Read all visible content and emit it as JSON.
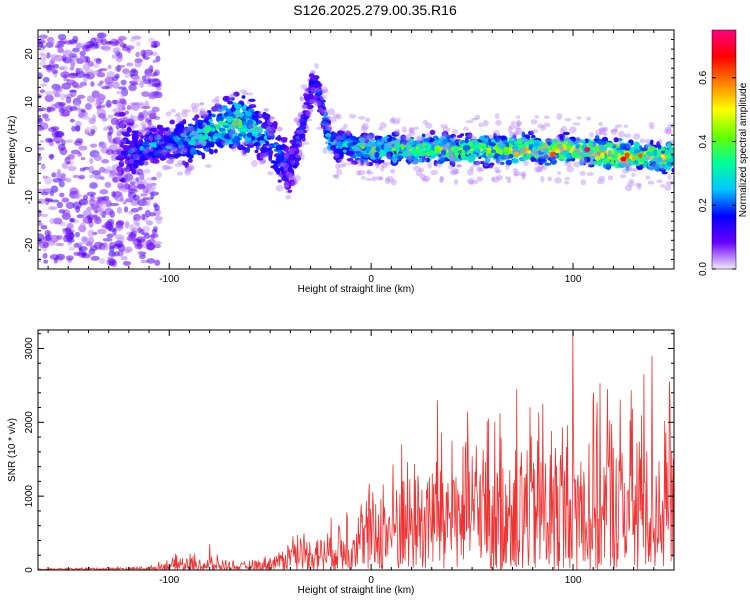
{
  "title": "S126.2025.279.00.35.R16",
  "chart_data": [
    {
      "type": "heatmap",
      "name": "spectrogram",
      "xlabel": "Height of straight line (km)",
      "ylabel": "Frequency (Hz)",
      "xlim": [
        -165,
        150
      ],
      "ylim": [
        -25,
        25
      ],
      "xticks": [
        -100,
        0,
        100
      ],
      "yticks": [
        -20,
        -10,
        0,
        10,
        20
      ],
      "colorbar": {
        "label": "Normalized spectral amplitude",
        "range": [
          0.0,
          0.75
        ],
        "ticks": [
          0.0,
          0.2,
          0.4,
          0.6
        ],
        "colors": [
          "#f3e8fb",
          "#6a00ff",
          "#0000ff",
          "#00c8ff",
          "#00ff99",
          "#66ff00",
          "#ffff00",
          "#ff8000",
          "#ff0000",
          "#ff0080"
        ]
      },
      "ridge_profile": [
        {
          "x": -165,
          "center": 0,
          "spread": 22,
          "amp": 0.05
        },
        {
          "x": -130,
          "center": 0,
          "spread": 20,
          "amp": 0.05
        },
        {
          "x": -115,
          "center": 0,
          "spread": 4,
          "amp": 0.2
        },
        {
          "x": -90,
          "center": 2,
          "spread": 5,
          "amp": 0.25
        },
        {
          "x": -65,
          "center": 6,
          "spread": 6,
          "amp": 0.35
        },
        {
          "x": -50,
          "center": 2,
          "spread": 6,
          "amp": 0.22
        },
        {
          "x": -40,
          "center": -5,
          "spread": 6,
          "amp": 0.15
        },
        {
          "x": -28,
          "center": 15,
          "spread": 3,
          "amp": 0.15
        },
        {
          "x": -20,
          "center": 1,
          "spread": 3,
          "amp": 0.25
        },
        {
          "x": 0,
          "center": 0,
          "spread": 3,
          "amp": 0.35
        },
        {
          "x": 50,
          "center": 0,
          "spread": 3,
          "amp": 0.4
        },
        {
          "x": 100,
          "center": 0,
          "spread": 3,
          "amp": 0.45
        },
        {
          "x": 130,
          "center": -1.5,
          "spread": 3,
          "amp": 0.5
        },
        {
          "x": 150,
          "center": -1.5,
          "spread": 3,
          "amp": 0.4
        }
      ],
      "peaks": [
        {
          "x": 107,
          "y": 0,
          "amp": 0.72
        },
        {
          "x": 125,
          "y": -2,
          "amp": 0.68
        },
        {
          "x": 90,
          "y": -1,
          "amp": 0.62
        },
        {
          "x": 72,
          "y": -1,
          "amp": 0.55
        }
      ]
    },
    {
      "type": "line",
      "name": "snr",
      "xlabel": "Height of straight line (km)",
      "ylabel": "SNR (10 * v/v)",
      "xlim": [
        -165,
        150
      ],
      "ylim": [
        0,
        3250
      ],
      "xticks": [
        -100,
        0,
        100
      ],
      "yticks": [
        0,
        1000,
        2000,
        3000
      ],
      "color": "#ee3333",
      "envelope": [
        {
          "x": -165,
          "base": 10,
          "amp": 10
        },
        {
          "x": -110,
          "base": 20,
          "amp": 30
        },
        {
          "x": -95,
          "base": 70,
          "amp": 150
        },
        {
          "x": -80,
          "base": 60,
          "amp": 160
        },
        {
          "x": -65,
          "base": 40,
          "amp": 60
        },
        {
          "x": -55,
          "base": 60,
          "amp": 100
        },
        {
          "x": -45,
          "base": 120,
          "amp": 150
        },
        {
          "x": -38,
          "base": 250,
          "amp": 300
        },
        {
          "x": -25,
          "base": 200,
          "amp": 300
        },
        {
          "x": -10,
          "base": 350,
          "amp": 600
        },
        {
          "x": 10,
          "base": 550,
          "amp": 900
        },
        {
          "x": 30,
          "base": 700,
          "amp": 1100
        },
        {
          "x": 60,
          "base": 800,
          "amp": 1300
        },
        {
          "x": 100,
          "base": 800,
          "amp": 1400
        },
        {
          "x": 130,
          "base": 850,
          "amp": 1500
        },
        {
          "x": 150,
          "base": 900,
          "amp": 1400
        }
      ],
      "spikes": [
        {
          "x": -80,
          "y": 350
        },
        {
          "x": -12,
          "y": 780
        },
        {
          "x": 15,
          "y": 1700
        },
        {
          "x": 33,
          "y": 2300
        },
        {
          "x": 40,
          "y": 1750
        },
        {
          "x": 58,
          "y": 2050
        },
        {
          "x": 72,
          "y": 2450
        },
        {
          "x": 85,
          "y": 2250
        },
        {
          "x": 100,
          "y": 3250
        },
        {
          "x": 110,
          "y": 2300
        },
        {
          "x": 117,
          "y": 2450
        },
        {
          "x": 135,
          "y": 2650
        },
        {
          "x": 139,
          "y": 2900
        },
        {
          "x": 148,
          "y": 2250
        }
      ]
    }
  ]
}
